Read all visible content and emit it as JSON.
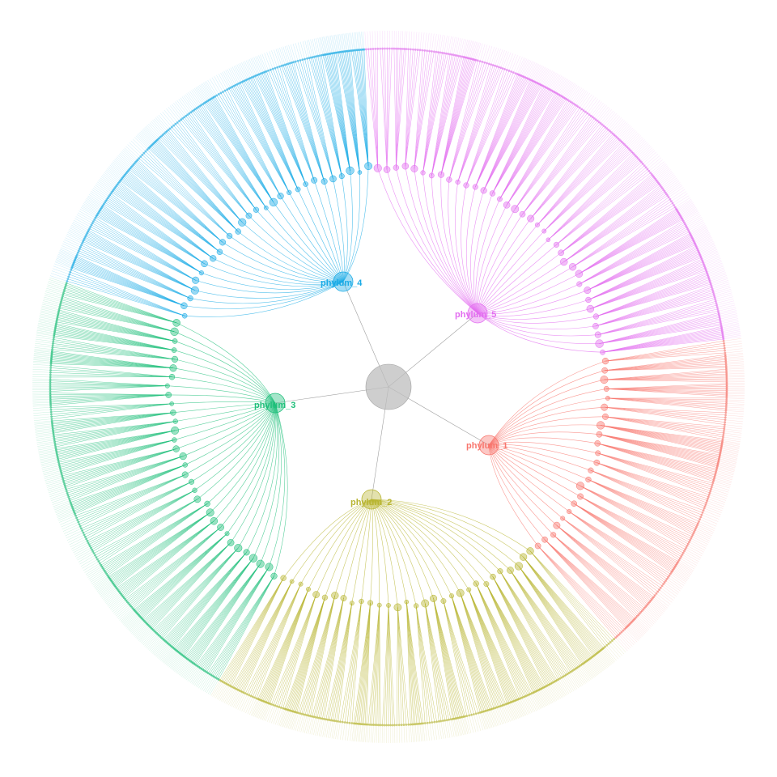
{
  "diagram": {
    "type": "circular-dendrogram",
    "root": {
      "color": "#bdbdbd"
    },
    "phyla": [
      {
        "name": "phylum_1",
        "color": "#f8766d"
      },
      {
        "name": "phylum_2",
        "color": "#b8b531"
      },
      {
        "name": "phylum_3",
        "color": "#1fbf7a"
      },
      {
        "name": "phylum_4",
        "color": "#1aabe6"
      },
      {
        "name": "phylum_5",
        "color": "#e36ef0"
      }
    ]
  }
}
